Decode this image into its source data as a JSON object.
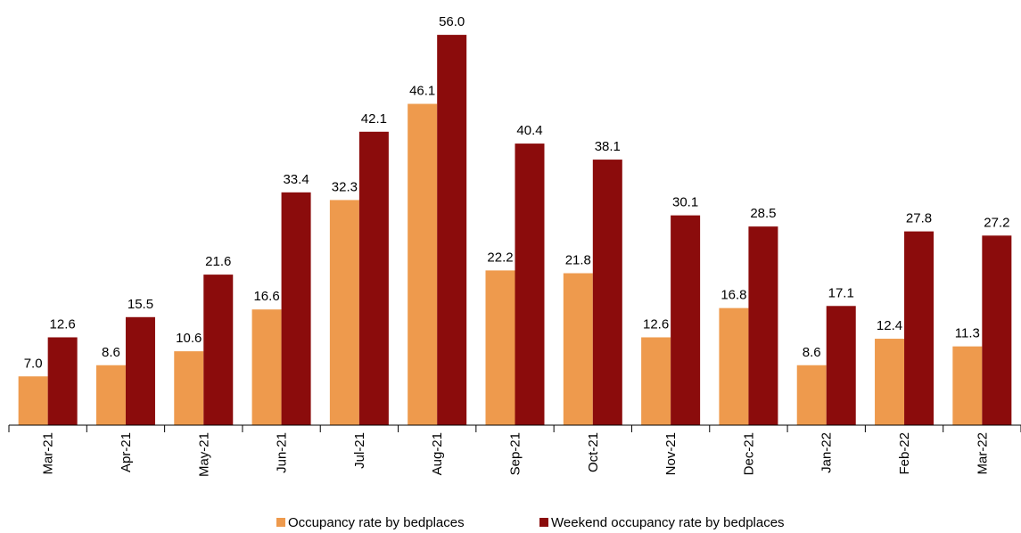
{
  "chart_data": {
    "type": "bar",
    "categories": [
      "Mar-21",
      "Apr-21",
      "May-21",
      "Jun-21",
      "Jul-21",
      "Aug-21",
      "Sep-21",
      "Oct-21",
      "Nov-21",
      "Dec-21",
      "Jan-22",
      "Feb-22",
      "Mar-22"
    ],
    "series": [
      {
        "name": "Occupancy rate by bedplaces",
        "color": "#ee9a4d",
        "values": [
          7.0,
          8.6,
          10.6,
          16.6,
          32.3,
          46.1,
          22.2,
          21.8,
          12.6,
          16.8,
          8.6,
          12.4,
          11.3
        ],
        "value_labels": [
          "7.0",
          "8.6",
          "10.6",
          "16.6",
          "32.3",
          "46.1",
          "22.2",
          "21.8",
          "12.6",
          "16.8",
          "8.6",
          "12.4",
          "11.3"
        ]
      },
      {
        "name": "Weekend occupancy rate by bedplaces",
        "color": "#8b0c0c",
        "values": [
          12.6,
          15.5,
          21.6,
          33.4,
          42.1,
          56.0,
          40.4,
          38.1,
          30.1,
          28.5,
          17.1,
          27.8,
          27.2
        ],
        "value_labels": [
          "12.6",
          "15.5",
          "21.6",
          "33.4",
          "42.1",
          "56.0",
          "40.4",
          "38.1",
          "30.1",
          "28.5",
          "17.1",
          "27.8",
          "27.2"
        ]
      }
    ],
    "ylim": [
      0,
      61
    ],
    "legend": "bottom"
  }
}
